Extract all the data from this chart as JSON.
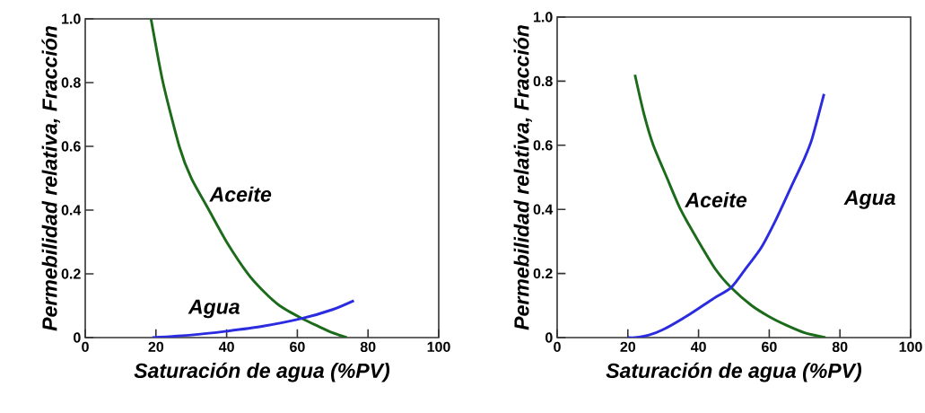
{
  "chart_data": [
    {
      "type": "line",
      "xlabel": "Saturación de agua (%PV)",
      "ylabel": "Permebilidad relativa, Fracción",
      "xlim": [
        0,
        100
      ],
      "ylim": [
        0,
        1
      ],
      "xticks": [
        0,
        20,
        40,
        60,
        80,
        100
      ],
      "yticks": [
        0,
        0.2,
        0.4,
        0.6,
        0.8,
        {
          "value": 1,
          "label": "1.0"
        }
      ],
      "marker": "none",
      "line_style": "solid",
      "series": [
        {
          "name": "Aceite",
          "color": "#1b6b1b",
          "x": [
            18.6,
            22,
            26.6,
            30,
            35,
            40,
            46,
            50,
            55,
            61.3,
            66,
            70,
            74
          ],
          "values": [
            1.0,
            0.8,
            0.6,
            0.5,
            0.4,
            0.3,
            0.2,
            0.15,
            0.1,
            0.06,
            0.035,
            0.015,
            0
          ]
        },
        {
          "name": "Agua",
          "color": "#2b2be0",
          "x": [
            19,
            30,
            40,
            50,
            61.3,
            70,
            76
          ],
          "values": [
            0,
            0.008,
            0.02,
            0.035,
            0.06,
            0.088,
            0.116
          ]
        }
      ]
    },
    {
      "type": "line",
      "xlabel": "Saturación de agua (%PV)",
      "ylabel": "Permebilidad relativa, Fracción",
      "xlim": [
        0,
        100
      ],
      "ylim": [
        0,
        1
      ],
      "xticks": [
        0,
        20,
        40,
        60,
        80,
        100
      ],
      "yticks": [
        0,
        0.2,
        0.4,
        0.6,
        0.8,
        {
          "value": 1,
          "label": "1.0"
        }
      ],
      "marker": "none",
      "line_style": "solid",
      "series": [
        {
          "name": "Aceite",
          "color": "#1b6b1b",
          "x": [
            22,
            24.5,
            27.2,
            31,
            34.9,
            40,
            45,
            49.2,
            55,
            60,
            64.5,
            70,
            75.9
          ],
          "values": [
            0.82,
            0.7,
            0.6,
            0.5,
            0.4,
            0.3,
            0.21,
            0.156,
            0.1,
            0.065,
            0.04,
            0.015,
            0
          ]
        },
        {
          "name": "Agua",
          "color": "#2b2be0",
          "x": [
            20,
            22,
            26,
            30,
            37.4,
            44,
            49.2,
            53,
            57.7,
            62,
            66.2,
            70,
            72.1,
            75.5
          ],
          "values": [
            0,
            0,
            0.008,
            0.025,
            0.072,
            0.12,
            0.156,
            0.21,
            0.28,
            0.37,
            0.47,
            0.56,
            0.62,
            0.76
          ]
        }
      ]
    }
  ]
}
